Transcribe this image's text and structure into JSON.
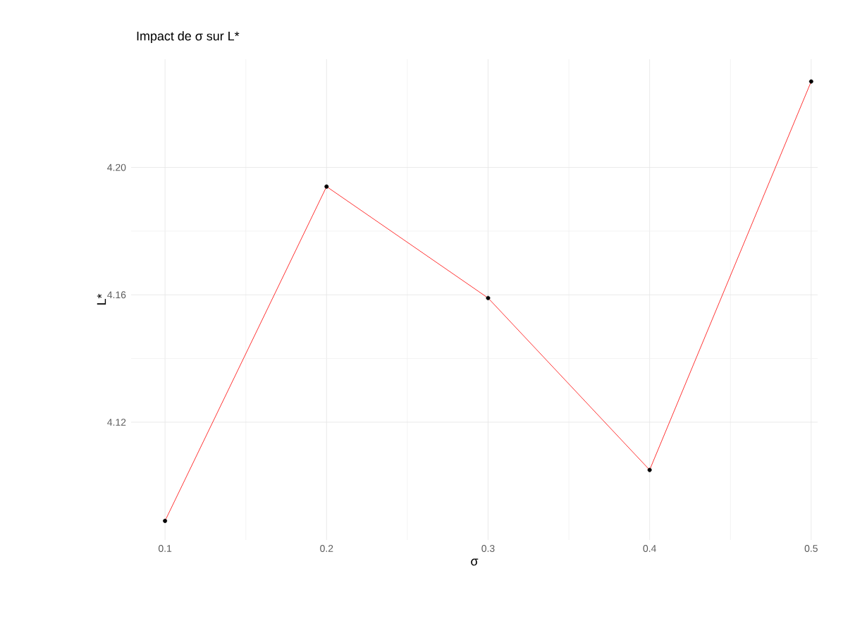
{
  "chart_data": {
    "type": "line",
    "title": "Impact de σ sur L*",
    "xlabel": "σ",
    "ylabel": "L*",
    "x": [
      0.1,
      0.2,
      0.3,
      0.4,
      0.5
    ],
    "series": [
      {
        "color": "#ff0000",
        "values": [
          4.089,
          4.194,
          4.159,
          4.105,
          4.227
        ]
      }
    ],
    "xlim": [
      0.079,
      0.504
    ],
    "ylim": [
      4.083,
      4.234
    ],
    "xticks": [
      0.1,
      0.2,
      0.3,
      0.4,
      0.5
    ],
    "yticks": [
      4.12,
      4.16,
      {
        "value": 4.2,
        "label": "4.20"
      }
    ],
    "grid": true,
    "marker": "circle",
    "line_style": "solid"
  }
}
